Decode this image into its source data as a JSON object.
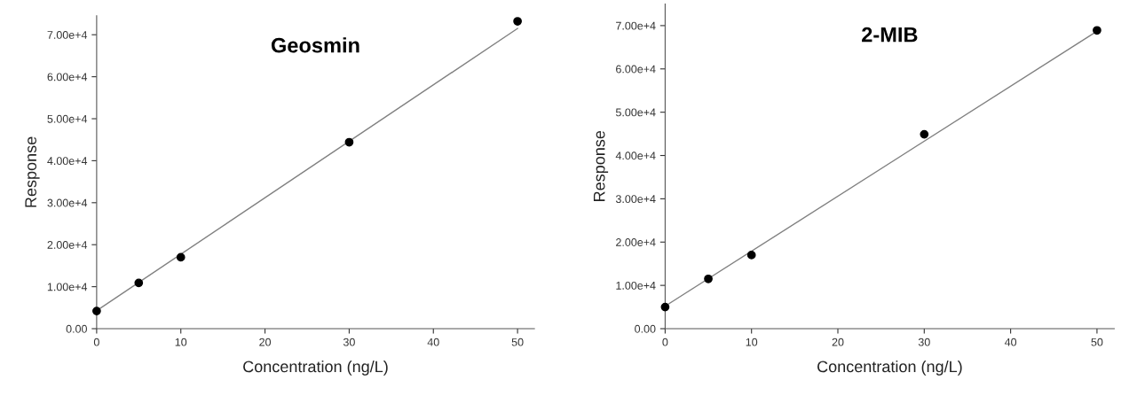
{
  "chart_data": [
    {
      "type": "scatter",
      "title": "Geosmin",
      "xlabel": "Concentration (ng/L)",
      "ylabel": "Response",
      "grid": false,
      "legend": false,
      "xlim": [
        0,
        52
      ],
      "ylim": [
        0,
        74500
      ],
      "xticks": [
        0,
        10,
        20,
        30,
        40,
        50
      ],
      "yticks": [
        {
          "value": 0,
          "label": "0.00"
        },
        {
          "value": 10000,
          "label": "1.00e+4"
        },
        {
          "value": 20000,
          "label": "2.00e+4"
        },
        {
          "value": 30000,
          "label": "3.00e+4"
        },
        {
          "value": 40000,
          "label": "4.00e+4"
        },
        {
          "value": 50000,
          "label": "5.00e+4"
        },
        {
          "value": 60000,
          "label": "6.00e+4"
        },
        {
          "value": 70000,
          "label": "7.00e+4"
        }
      ],
      "series": [
        {
          "type": "line",
          "marker": "none",
          "color": "#808080",
          "x": [
            0,
            50
          ],
          "values": [
            4300,
            71500
          ]
        },
        {
          "marker": "circle",
          "color": "#000000",
          "x": [
            0,
            5,
            10,
            30,
            50
          ],
          "values": [
            4200,
            10900,
            17000,
            44400,
            73200
          ]
        }
      ]
    },
    {
      "type": "scatter",
      "title": "2-MIB",
      "xlabel": "Concentration (ng/L)",
      "ylabel": "Response",
      "grid": false,
      "legend": false,
      "xlim": [
        0,
        52
      ],
      "ylim": [
        0,
        75000
      ],
      "xticks": [
        0,
        10,
        20,
        30,
        40,
        50
      ],
      "yticks": [
        {
          "value": 0,
          "label": "0.00"
        },
        {
          "value": 10000,
          "label": "1.00e+4"
        },
        {
          "value": 20000,
          "label": "2.00e+4"
        },
        {
          "value": 30000,
          "label": "3.00e+4"
        },
        {
          "value": 40000,
          "label": "4.00e+4"
        },
        {
          "value": 50000,
          "label": "5.00e+4"
        },
        {
          "value": 60000,
          "label": "6.00e+4"
        },
        {
          "value": 70000,
          "label": "7.00e+4"
        }
      ],
      "series": [
        {
          "type": "line",
          "marker": "none",
          "color": "#808080",
          "x": [
            0,
            50
          ],
          "values": [
            5200,
            68700
          ]
        },
        {
          "marker": "circle",
          "color": "#000000",
          "x": [
            0,
            5,
            10,
            30,
            50
          ],
          "values": [
            5000,
            11500,
            17000,
            44900,
            68900
          ]
        }
      ]
    }
  ]
}
